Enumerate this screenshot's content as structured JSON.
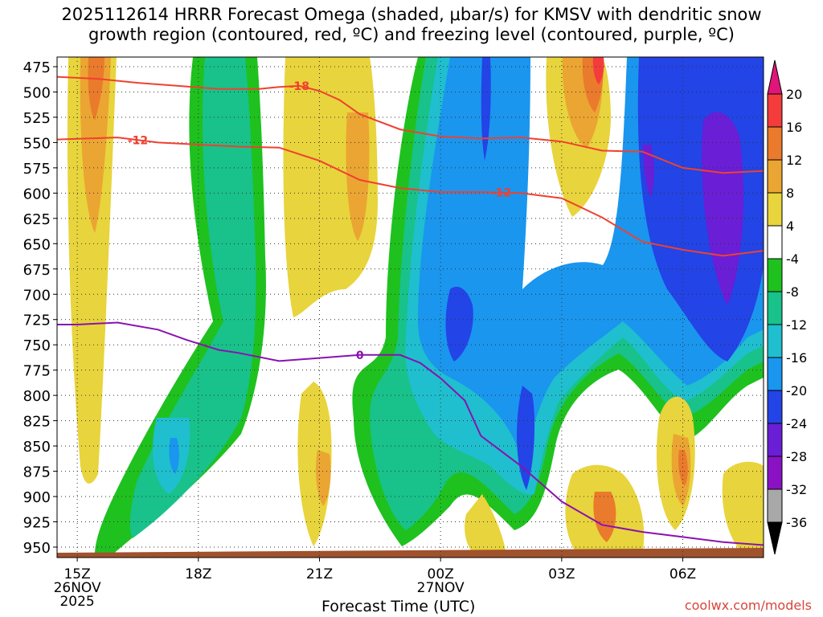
{
  "title": "2025112614 HRRR Forecast Omega (shaded, μbar/s) for KMSV with dendritic snow\ngrowth region (contoured, red, ºC) and freezing level (contoured, purple, ºC)",
  "credit": "coolwx.com/models",
  "chart_data": {
    "type": "heatmap",
    "title": "2025112614 HRRR Forecast Omega (shaded, μbar/s) for KMSV with dendritic snow growth region (contoured, red, ºC) and freezing level (contoured, purple, ºC)",
    "xlabel": "Forecast Time (UTC)",
    "ylabel": "",
    "x_ticks": [
      {
        "label": [
          "15Z",
          "26NOV",
          "2025"
        ],
        "hour": 15
      },
      {
        "label": [
          "18Z"
        ],
        "hour": 18
      },
      {
        "label": [
          "21Z"
        ],
        "hour": 21
      },
      {
        "label": [
          "00Z",
          "27NOV"
        ],
        "hour": 24
      },
      {
        "label": [
          "03Z"
        ],
        "hour": 27
      },
      {
        "label": [
          "06Z"
        ],
        "hour": 30
      }
    ],
    "xlim_hours": [
      14.5,
      32
    ],
    "y_ticks": [
      475,
      500,
      525,
      550,
      575,
      600,
      625,
      650,
      675,
      700,
      725,
      750,
      775,
      800,
      825,
      850,
      875,
      900,
      925,
      950
    ],
    "ylim_mb": [
      450,
      950
    ],
    "grid": true,
    "colorbar": {
      "labels": [
        "20",
        "16",
        "12",
        "8",
        "4",
        "-4",
        "-8",
        "-12",
        "-16",
        "-20",
        "-24",
        "-28",
        "-32",
        "-36"
      ],
      "bins": [
        {
          "range": ">20",
          "color": "#e0157a"
        },
        {
          "range": "16 to 20",
          "color": "#f43c3c"
        },
        {
          "range": "12 to 16",
          "color": "#ea7a2c"
        },
        {
          "range": "8 to 12",
          "color": "#eba532"
        },
        {
          "range": "4 to 8",
          "color": "#e8d43c"
        },
        {
          "range": "-4 to 4",
          "color": "#ffffff"
        },
        {
          "range": "-8 to -4",
          "color": "#1fc11f"
        },
        {
          "range": "-12 to -8",
          "color": "#18c28a"
        },
        {
          "range": "-16 to -12",
          "color": "#1fbfcf"
        },
        {
          "range": "-20 to -16",
          "color": "#1a96ee"
        },
        {
          "range": "-24 to -20",
          "color": "#2344e6"
        },
        {
          "range": "-28 to -24",
          "color": "#6a1ed6"
        },
        {
          "range": "-32 to -28",
          "color": "#8a12c4"
        },
        {
          "range": "-36 to -32",
          "color": "#a8a8a8"
        },
        {
          "range": "<-36",
          "color": "#000000"
        }
      ]
    },
    "contours": [
      {
        "label": "-18",
        "color": "#f04030",
        "points": [
          [
            14.5,
            485
          ],
          [
            15.5,
            487
          ],
          [
            16.5,
            491
          ],
          [
            17.5,
            494
          ],
          [
            18.5,
            497
          ],
          [
            19.5,
            497
          ],
          [
            20,
            495
          ],
          [
            20.5,
            494
          ],
          [
            21,
            499
          ],
          [
            21.5,
            508
          ],
          [
            22,
            522
          ],
          [
            23,
            537
          ],
          [
            24,
            544
          ],
          [
            25,
            546
          ],
          [
            26,
            545
          ],
          [
            27,
            549
          ],
          [
            28,
            558
          ],
          [
            29,
            559
          ],
          [
            30,
            575
          ],
          [
            31,
            580
          ],
          [
            32,
            578
          ]
        ]
      },
      {
        "label": "-12",
        "color": "#f04030",
        "points": [
          [
            14.5,
            547
          ],
          [
            16,
            545
          ],
          [
            17,
            550
          ],
          [
            19,
            554
          ],
          [
            20,
            555
          ],
          [
            21,
            568
          ],
          [
            22,
            587
          ],
          [
            23,
            595
          ],
          [
            24,
            599
          ],
          [
            25,
            599
          ],
          [
            26,
            600
          ],
          [
            27,
            605
          ],
          [
            28,
            624
          ],
          [
            29,
            648
          ],
          [
            30,
            656
          ],
          [
            31,
            662
          ],
          [
            32,
            657
          ]
        ]
      },
      {
        "label": "0",
        "color": "#8a12b0",
        "points": [
          [
            14.5,
            730
          ],
          [
            15,
            730
          ],
          [
            16,
            728
          ],
          [
            17,
            735
          ],
          [
            17.7,
            745
          ],
          [
            18.5,
            755
          ],
          [
            19,
            758
          ],
          [
            20,
            766
          ],
          [
            21,
            763
          ],
          [
            22,
            760
          ],
          [
            23,
            760
          ],
          [
            23.5,
            768
          ],
          [
            24,
            783
          ],
          [
            24.6,
            805
          ],
          [
            25,
            840
          ],
          [
            26,
            870
          ],
          [
            27,
            905
          ],
          [
            28,
            928
          ],
          [
            29,
            935
          ],
          [
            30,
            940
          ],
          [
            31,
            945
          ],
          [
            32,
            948
          ]
        ]
      }
    ],
    "surface_terrain_color": "#a0522d"
  }
}
